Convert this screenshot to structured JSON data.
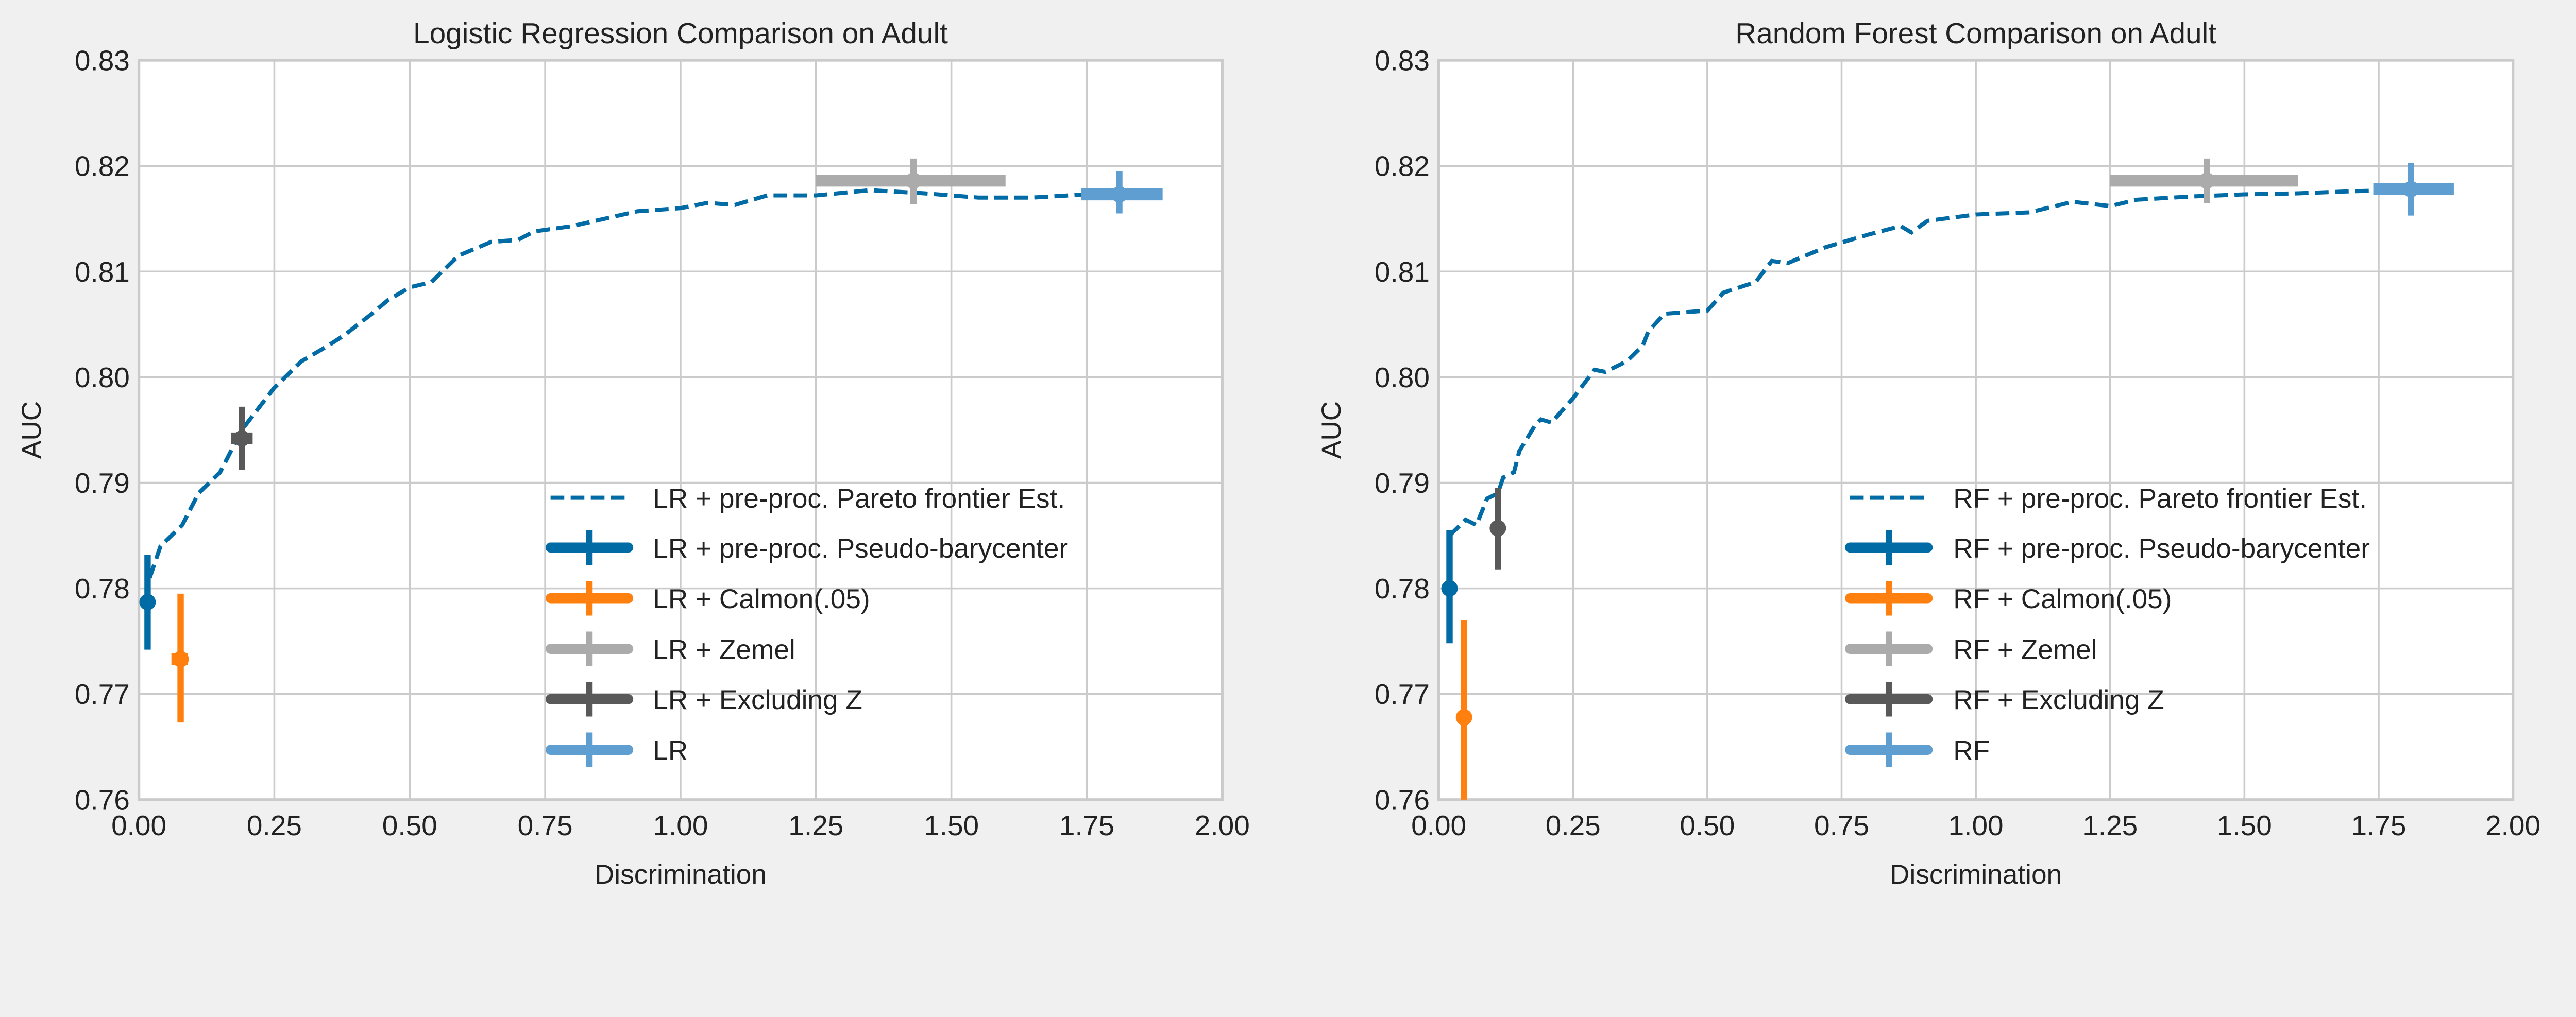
{
  "colors": {
    "background": "#f0f0f0",
    "plot_bg": "#ffffff",
    "grid": "#cbcbcb",
    "frontier": "#006ba4",
    "pseudo_barycenter": "#006ba4",
    "calmon": "#ff800e",
    "zemel": "#ababab",
    "excluding_z": "#595959",
    "baseline": "#5f9ed1"
  },
  "chart_data": [
    {
      "type": "line",
      "title": "Logistic Regression Comparison on Adult",
      "xlabel": "Discrimination",
      "ylabel": "AUC",
      "xlim": [
        0,
        2
      ],
      "ylim": [
        0.76,
        0.83
      ],
      "xticks": [
        "0.00",
        "0.25",
        "0.50",
        "0.75",
        "1.00",
        "1.25",
        "1.50",
        "1.75",
        "2.00"
      ],
      "yticks": [
        "0.76",
        "0.77",
        "0.78",
        "0.79",
        "0.80",
        "0.81",
        "0.82",
        "0.83"
      ],
      "grid": true,
      "legend_position": "lower-right",
      "frontier": {
        "name": "LR + pre-proc. Pareto frontier Est.",
        "x": [
          0.02,
          0.04,
          0.08,
          0.11,
          0.15,
          0.19,
          0.22,
          0.25,
          0.3,
          0.35,
          0.38,
          0.43,
          0.46,
          0.5,
          0.54,
          0.59,
          0.65,
          0.7,
          0.73,
          0.8,
          0.86,
          0.92,
          1.0,
          1.05,
          1.1,
          1.16,
          1.25,
          1.35,
          1.45,
          1.55,
          1.65,
          1.75,
          1.81
        ],
        "y": [
          0.781,
          0.784,
          0.786,
          0.789,
          0.791,
          0.795,
          0.797,
          0.799,
          0.8015,
          0.803,
          0.804,
          0.806,
          0.8073,
          0.8085,
          0.809,
          0.8115,
          0.8128,
          0.813,
          0.8138,
          0.8143,
          0.815,
          0.8157,
          0.816,
          0.8165,
          0.8163,
          0.8172,
          0.8172,
          0.8177,
          0.8174,
          0.817,
          0.817,
          0.8173,
          0.8174
        ]
      },
      "errorbars": [
        {
          "name": "LR + pre-proc. Pseudo-barycenter",
          "color_key": "pseudo_barycenter",
          "x": 0.016,
          "y": 0.7787,
          "xerr": [
            0.012,
            0.02
          ],
          "yerr": [
            0.7742,
            0.7832
          ]
        },
        {
          "name": "LR + Calmon(.05)",
          "color_key": "calmon",
          "x": 0.077,
          "y": 0.7733,
          "xerr": [
            0.06,
            0.09
          ],
          "yerr": [
            0.7673,
            0.7795
          ]
        },
        {
          "name": "LR + Zemel",
          "color_key": "zemel",
          "x": 1.43,
          "y": 0.8186,
          "xerr": [
            1.25,
            1.6
          ],
          "yerr": [
            0.8164,
            0.8207
          ]
        },
        {
          "name": "LR + Excluding Z",
          "color_key": "excluding_z",
          "x": 0.19,
          "y": 0.7942,
          "xerr": [
            0.17,
            0.21
          ],
          "yerr": [
            0.7912,
            0.7972
          ]
        },
        {
          "name": "LR",
          "color_key": "baseline",
          "x": 1.81,
          "y": 0.8173,
          "xerr": [
            1.74,
            1.89
          ],
          "yerr": [
            0.8155,
            0.8195
          ]
        }
      ]
    },
    {
      "type": "line",
      "title": "Random Forest Comparison on Adult",
      "xlabel": "Discrimination",
      "ylabel": "AUC",
      "xlim": [
        0,
        2
      ],
      "ylim": [
        0.76,
        0.83
      ],
      "xticks": [
        "0.00",
        "0.25",
        "0.50",
        "0.75",
        "1.00",
        "1.25",
        "1.50",
        "1.75",
        "2.00"
      ],
      "yticks": [
        "0.76",
        "0.77",
        "0.78",
        "0.79",
        "0.80",
        "0.81",
        "0.82",
        "0.83"
      ],
      "grid": true,
      "legend_position": "lower-right",
      "frontier": {
        "name": "RF + pre-proc. Pareto frontier Est.",
        "x": [
          0.02,
          0.05,
          0.07,
          0.09,
          0.11,
          0.12,
          0.14,
          0.15,
          0.18,
          0.19,
          0.21,
          0.25,
          0.29,
          0.31,
          0.35,
          0.38,
          0.39,
          0.42,
          0.5,
          0.53,
          0.59,
          0.62,
          0.65,
          0.72,
          0.8,
          0.86,
          0.88,
          0.91,
          1.0,
          1.1,
          1.18,
          1.25,
          1.3,
          1.4,
          1.5,
          1.6,
          1.7,
          1.78
        ],
        "y": [
          0.785,
          0.7865,
          0.786,
          0.7885,
          0.789,
          0.7905,
          0.791,
          0.793,
          0.7955,
          0.796,
          0.7957,
          0.798,
          0.8007,
          0.8005,
          0.8015,
          0.803,
          0.8043,
          0.806,
          0.8063,
          0.808,
          0.809,
          0.811,
          0.8108,
          0.8123,
          0.8135,
          0.8143,
          0.8137,
          0.8148,
          0.8154,
          0.8156,
          0.8166,
          0.8162,
          0.8168,
          0.8171,
          0.8173,
          0.8174,
          0.8176,
          0.8177
        ]
      },
      "errorbars": [
        {
          "name": "RF + pre-proc. Pseudo-barycenter",
          "color_key": "pseudo_barycenter",
          "x": 0.02,
          "y": 0.78,
          "xerr": [
            0.015,
            0.025
          ],
          "yerr": [
            0.7748,
            0.7855
          ]
        },
        {
          "name": "RF + Calmon(.05)",
          "color_key": "calmon",
          "x": 0.047,
          "y": 0.7678,
          "xerr": [
            0.04,
            0.055
          ],
          "yerr": [
            0.7585,
            0.777
          ]
        },
        {
          "name": "RF + Zemel",
          "color_key": "zemel",
          "x": 1.43,
          "y": 0.8186,
          "xerr": [
            1.25,
            1.6
          ],
          "yerr": [
            0.8165,
            0.8207
          ]
        },
        {
          "name": "RF + Excluding Z",
          "color_key": "excluding_z",
          "x": 0.11,
          "y": 0.7857,
          "xerr": [
            0.1,
            0.12
          ],
          "yerr": [
            0.7818,
            0.7895
          ]
        },
        {
          "name": "RF",
          "color_key": "baseline",
          "x": 1.81,
          "y": 0.8178,
          "xerr": [
            1.74,
            1.89
          ],
          "yerr": [
            0.8153,
            0.8203
          ]
        }
      ]
    }
  ]
}
